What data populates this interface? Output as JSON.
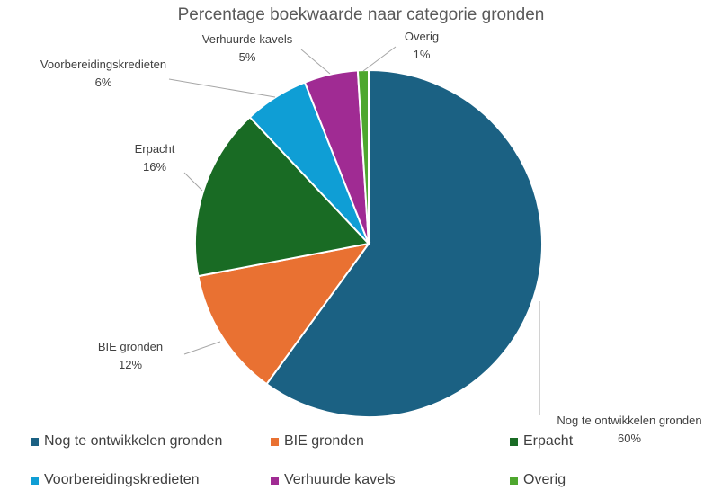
{
  "chart_data": {
    "type": "pie",
    "title": "Percentage boekwaarde naar categorie gronden",
    "legend_position": "bottom",
    "slices": [
      {
        "name": "Nog te ontwikkelen gronden",
        "value": 60,
        "label": "60%",
        "color": "#1B6183"
      },
      {
        "name": "BIE gronden",
        "value": 12,
        "label": "12%",
        "color": "#E97132"
      },
      {
        "name": "Erpacht",
        "value": 16,
        "label": "16%",
        "color": "#196B24"
      },
      {
        "name": "Voorbereidingskredieten",
        "value": 6,
        "label": "6%",
        "color": "#0F9ED5"
      },
      {
        "name": "Verhuurde kavels",
        "value": 5,
        "label": "5%",
        "color": "#A02B93"
      },
      {
        "name": "Overig",
        "value": 1,
        "label": "1%",
        "color": "#4EA72E"
      }
    ]
  }
}
